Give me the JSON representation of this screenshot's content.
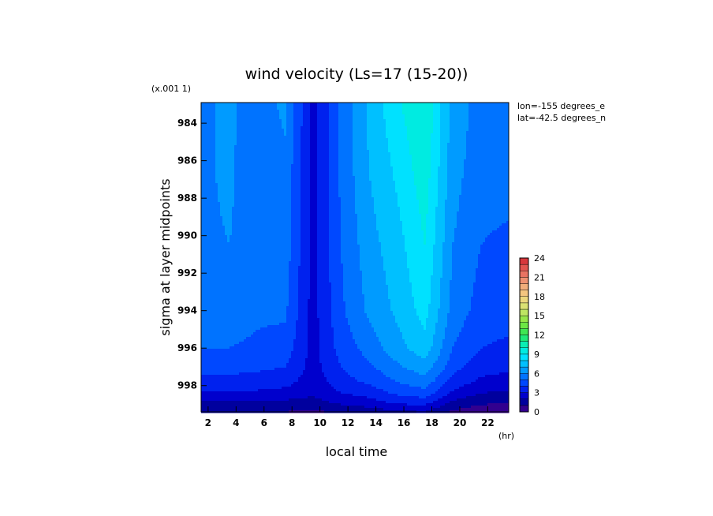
{
  "chart_data": {
    "type": "heatmap",
    "title": "wind velocity (Ls=17 (15-20))",
    "xlabel": "local time",
    "ylabel": "sigma at layer midpoints",
    "x_unit": "(hr)",
    "y_scale_note": "(x.001 1)",
    "annotations": [
      "lon=-155 degrees_e",
      "lat=-42.5 degrees_n"
    ],
    "xlim": [
      1.5,
      23.5
    ],
    "ylim": [
      999.4,
      982.9
    ],
    "x_ticks": [
      2,
      4,
      6,
      8,
      10,
      12,
      14,
      16,
      18,
      20,
      22
    ],
    "y_ticks": [
      984,
      986,
      988,
      990,
      992,
      994,
      996,
      998
    ],
    "x": [
      1.5,
      3.5,
      5.5,
      7.5,
      9.5,
      11.5,
      13.5,
      15.5,
      17.5,
      19.5,
      21.5,
      23.5
    ],
    "y": [
      983.0,
      986.5,
      990.5,
      994.0,
      996.0,
      997.0,
      997.8,
      998.4,
      998.9,
      999.4
    ],
    "z": [
      [
        5.8,
        6.2,
        5.5,
        6.2,
        2.6,
        5.2,
        7.2,
        8.8,
        10.0,
        6.6,
        5.6,
        5.6
      ],
      [
        5.8,
        6.2,
        5.2,
        5.8,
        2.6,
        5.2,
        7.0,
        8.2,
        9.6,
        6.4,
        5.4,
        5.4
      ],
      [
        5.8,
        6.0,
        5.6,
        5.6,
        2.6,
        5.0,
        6.6,
        7.6,
        9.0,
        6.0,
        5.0,
        4.8
      ],
      [
        5.6,
        5.6,
        5.2,
        5.2,
        2.6,
        4.8,
        6.2,
        7.2,
        8.4,
        5.6,
        4.6,
        4.4
      ],
      [
        5.0,
        5.0,
        4.8,
        4.6,
        2.6,
        4.4,
        5.4,
        6.6,
        7.6,
        5.0,
        4.0,
        3.8
      ],
      [
        4.4,
        4.4,
        4.2,
        4.0,
        2.6,
        4.0,
        4.8,
        5.8,
        6.6,
        4.4,
        3.4,
        3.2
      ],
      [
        3.6,
        3.6,
        3.6,
        3.4,
        2.4,
        3.6,
        4.2,
        5.0,
        5.6,
        3.6,
        2.8,
        2.6
      ],
      [
        2.8,
        2.8,
        2.8,
        2.6,
        2.2,
        3.0,
        3.4,
        4.2,
        4.6,
        2.8,
        2.0,
        1.8
      ],
      [
        1.8,
        1.8,
        1.8,
        1.8,
        1.6,
        2.2,
        2.6,
        3.2,
        3.4,
        1.8,
        1.2,
        1.0
      ],
      [
        1.0,
        1.0,
        1.0,
        1.0,
        0.8,
        1.2,
        1.4,
        1.8,
        2.0,
        0.8,
        0.4,
        0.2
      ]
    ],
    "colorbar": {
      "ticks": [
        0,
        3,
        6,
        9,
        12,
        15,
        18,
        21,
        24
      ],
      "min": 0,
      "max": 24,
      "step": 1
    },
    "grid": false,
    "legend": "right"
  }
}
